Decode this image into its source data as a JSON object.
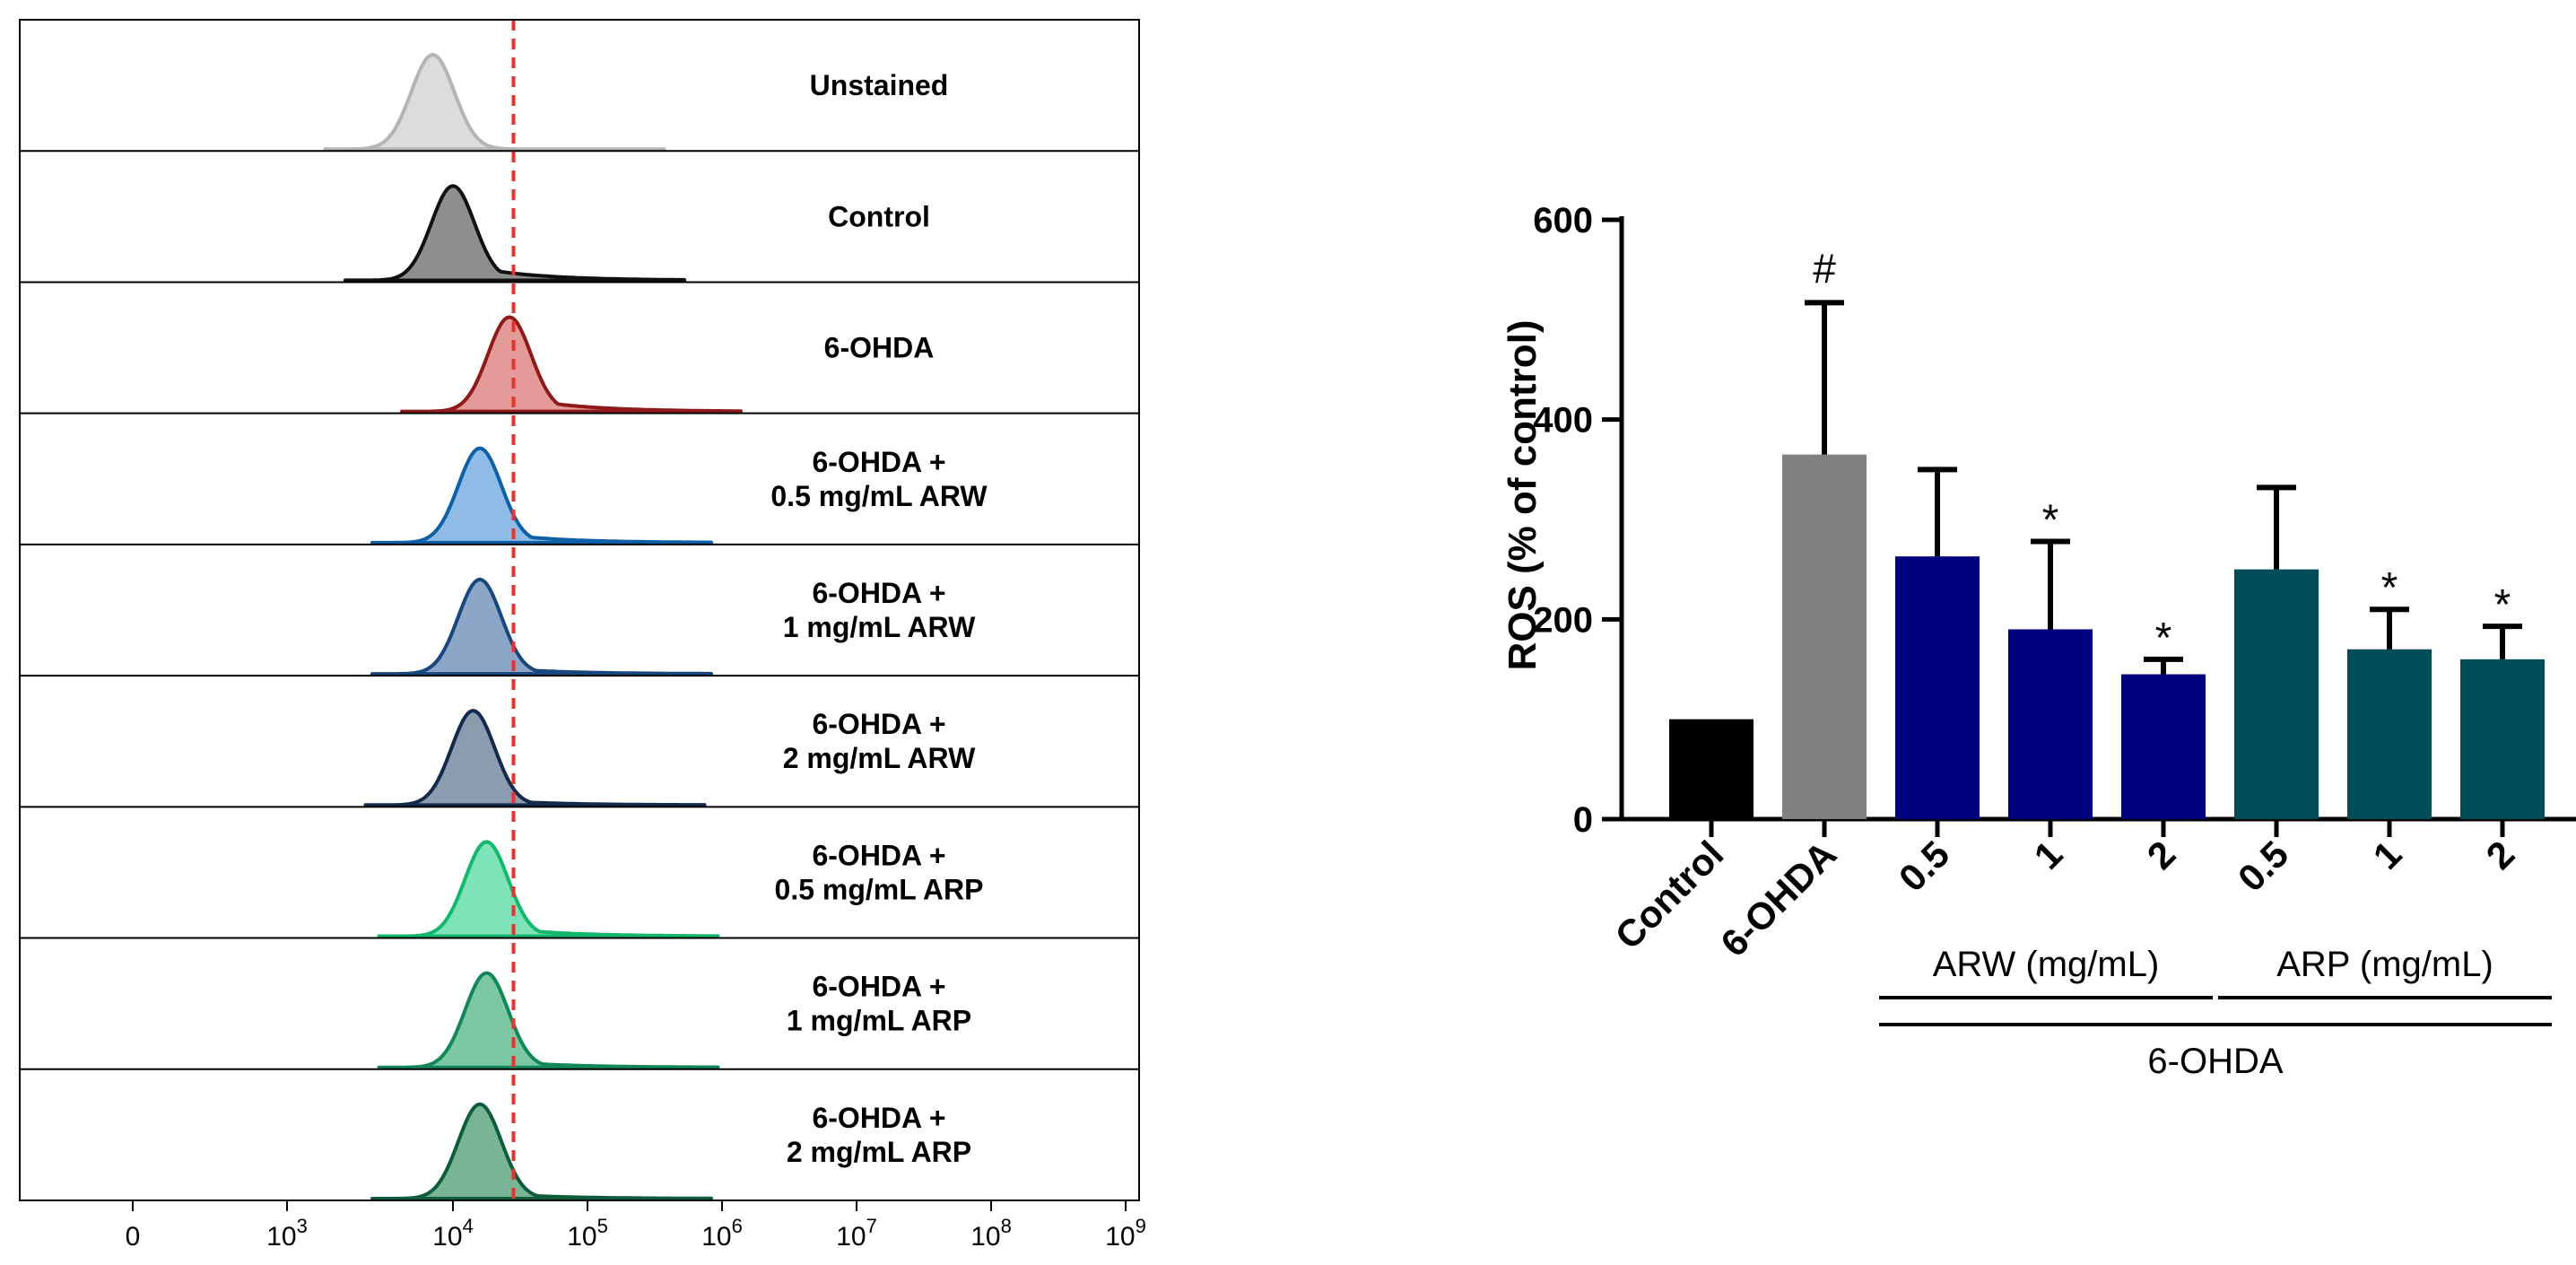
{
  "chart_data": [
    {
      "type": "histogram",
      "title": "",
      "xlabel": "",
      "ylabel": "",
      "x_ticks": [
        {
          "base": "0",
          "exp": ""
        },
        {
          "base": "10",
          "exp": "3"
        },
        {
          "base": "10",
          "exp": "4"
        },
        {
          "base": "10",
          "exp": "5"
        },
        {
          "base": "10",
          "exp": "6"
        },
        {
          "base": "10",
          "exp": "7"
        },
        {
          "base": "10",
          "exp": "8"
        },
        {
          "base": "10",
          "exp": "9"
        }
      ],
      "threshold_log10": 4.45,
      "threshold_color": "#e8322d",
      "panels": [
        {
          "lines": [
            "Unstained"
          ],
          "peak_log10": 3.85,
          "fill": "#dcdcdc",
          "stroke": "#b4b4b4",
          "tail": 0.0
        },
        {
          "lines": [
            "Control"
          ],
          "peak_log10": 4.0,
          "fill": "#8e8e8e",
          "stroke": "#101010",
          "tail": 0.7
        },
        {
          "lines": [
            "6-OHDA"
          ],
          "peak_log10": 4.42,
          "fill": "#e39a98",
          "stroke": "#8e1a1a",
          "tail": 0.6
        },
        {
          "lines": [
            "6-OHDA +",
            "0.5 mg/mL ARW"
          ],
          "peak_log10": 4.2,
          "fill": "#8fbce6",
          "stroke": "#0d5fa8",
          "tail": 0.45
        },
        {
          "lines": [
            "6-OHDA +",
            "1 mg/mL ARW"
          ],
          "peak_log10": 4.2,
          "fill": "#8ca6c8",
          "stroke": "#18477e",
          "tail": 0.3
        },
        {
          "lines": [
            "6-OHDA +",
            "2 mg/mL ARW"
          ],
          "peak_log10": 4.15,
          "fill": "#8b9bb0",
          "stroke": "#142a4a",
          "tail": 0.25
        },
        {
          "lines": [
            "6-OHDA +",
            "0.5 mg/mL ARP"
          ],
          "peak_log10": 4.25,
          "fill": "#7ee3b8",
          "stroke": "#13b86d",
          "tail": 0.4
        },
        {
          "lines": [
            "6-OHDA +",
            "1 mg/mL ARP"
          ],
          "peak_log10": 4.25,
          "fill": "#7cc7a4",
          "stroke": "#12875a",
          "tail": 0.3
        },
        {
          "lines": [
            "6-OHDA +",
            "2 mg/mL ARP"
          ],
          "peak_log10": 4.2,
          "fill": "#78b596",
          "stroke": "#0d5c3b",
          "tail": 0.25
        }
      ]
    },
    {
      "type": "bar",
      "title": "",
      "xlabel": "",
      "ylabel": "ROS (% of control)",
      "ylim": [
        0,
        600
      ],
      "yticks": [
        0,
        200,
        400,
        600
      ],
      "categories": [
        "Control",
        "6-OHDA",
        "0.5",
        "1",
        "2",
        "0.5",
        "1",
        "2"
      ],
      "values": [
        100,
        365,
        263,
        190,
        145,
        250,
        170,
        160
      ],
      "errors": [
        0,
        152,
        87,
        88,
        15,
        82,
        40,
        33
      ],
      "colors": [
        "#000000",
        "#808080",
        "#00007f",
        "#00007f",
        "#00007f",
        "#004c5a",
        "#004c5a",
        "#004c5a"
      ],
      "annotations": [
        "",
        "#",
        "",
        "*",
        "*",
        "",
        "*",
        "*"
      ],
      "group_labels": [
        {
          "label": "ARW (mg/mL)",
          "from": 2,
          "to": 4
        },
        {
          "label": "ARP (mg/mL)",
          "from": 5,
          "to": 7
        }
      ],
      "outer_group_label": {
        "label": "6-OHDA",
        "from": 2,
        "to": 7
      }
    }
  ]
}
